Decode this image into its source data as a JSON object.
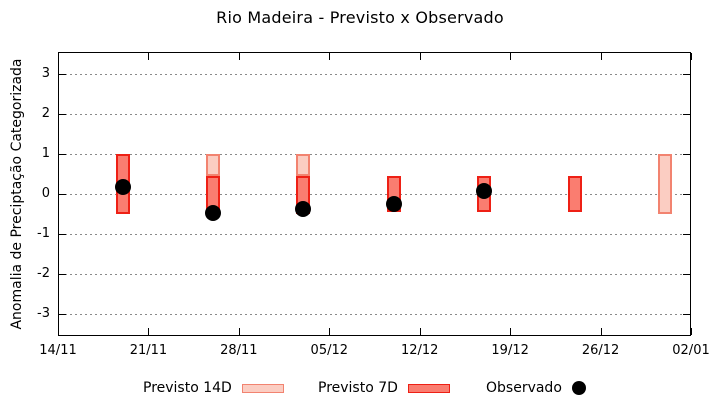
{
  "colors": {
    "background": "#ffffff",
    "frame": "#000000",
    "grid": "#8a8a8a",
    "previsto14_fill": "#fbcdc2",
    "previsto14_border": "#f28370",
    "previsto7_fill": "#fa7d70",
    "previsto7_border": "#ee2015",
    "observado": "#000000"
  },
  "chart_data": {
    "type": "bar",
    "title": "Rio Madeira - Previsto x Observado",
    "xlabel": "",
    "ylabel": "Anomalia de Preciptação Categorizada",
    "ylim": [
      -3.55,
      3.55
    ],
    "yticks": [
      3,
      2,
      1,
      0,
      -1,
      -2,
      -3
    ],
    "grid": "horizontal-dotted",
    "x_axis": {
      "tick_labels": [
        "14/11",
        "21/11",
        "28/11",
        "05/12",
        "12/12",
        "19/12",
        "26/12",
        "02/01"
      ],
      "tick_days": [
        0,
        7,
        14,
        21,
        28,
        35,
        42,
        49
      ],
      "range_days": 49
    },
    "legend": [
      {
        "label": "Previsto 14D",
        "swatch": "light-box"
      },
      {
        "label": "Previsto 7D",
        "swatch": "dark-box"
      },
      {
        "label": "Observado",
        "swatch": "black-dot"
      }
    ],
    "series": [
      {
        "name": "Previsto 14D",
        "kind": "range-bar",
        "bars": [
          {
            "date": "26/11",
            "day": 12,
            "lo": 0.45,
            "hi": 1.0
          },
          {
            "date": "03/12",
            "day": 19,
            "lo": 0.45,
            "hi": 1.0
          },
          {
            "date": "31/12",
            "day": 47,
            "lo": -0.5,
            "hi": 1.0
          }
        ]
      },
      {
        "name": "Previsto 7D",
        "kind": "range-bar",
        "bars": [
          {
            "date": "19/11",
            "day": 5,
            "lo": -0.5,
            "hi": 1.0
          },
          {
            "date": "26/11",
            "day": 12,
            "lo": -0.5,
            "hi": 0.45
          },
          {
            "date": "03/12",
            "day": 19,
            "lo": -0.5,
            "hi": 0.45
          },
          {
            "date": "10/12",
            "day": 26,
            "lo": -0.45,
            "hi": 0.45
          },
          {
            "date": "17/12",
            "day": 33,
            "lo": -0.45,
            "hi": 0.45
          },
          {
            "date": "24/12",
            "day": 40,
            "lo": -0.45,
            "hi": 0.45
          }
        ]
      },
      {
        "name": "Observado",
        "kind": "point",
        "points": [
          {
            "date": "19/11",
            "day": 5,
            "value": 0.18
          },
          {
            "date": "26/11",
            "day": 12,
            "value": -0.48
          },
          {
            "date": "03/12",
            "day": 19,
            "value": -0.37
          },
          {
            "date": "10/12",
            "day": 26,
            "value": -0.24
          },
          {
            "date": "17/12",
            "day": 33,
            "value": 0.08
          }
        ]
      }
    ]
  }
}
